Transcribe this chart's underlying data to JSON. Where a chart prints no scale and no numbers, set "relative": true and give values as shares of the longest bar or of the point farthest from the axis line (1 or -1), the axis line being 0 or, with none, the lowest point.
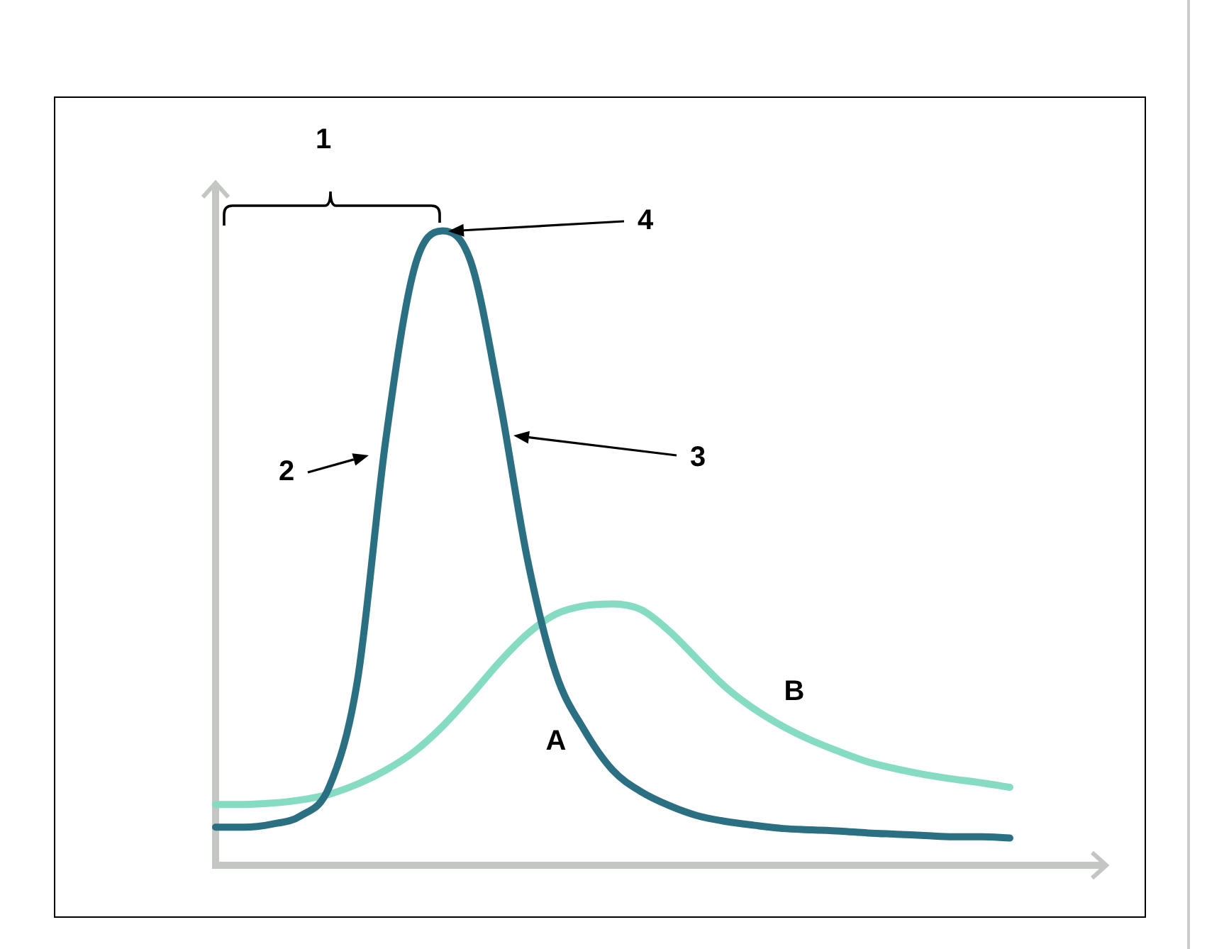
{
  "chart_data": {
    "type": "line",
    "relative": true,
    "marker": "none",
    "categories": [
      null,
      null,
      null,
      null,
      null,
      null,
      null,
      null,
      null,
      null,
      null,
      null,
      null,
      null,
      null,
      null,
      null,
      null,
      null,
      null,
      null,
      null,
      null,
      null,
      null,
      null,
      null,
      null,
      null
    ],
    "series": [
      {
        "name": "A",
        "color": "#2b6f83",
        "values": [
          0.06,
          0.06,
          0.065,
          0.078,
          0.123,
          0.291,
          0.671,
          0.94,
          1,
          0.951,
          0.738,
          0.481,
          0.302,
          0.213,
          0.15,
          0.116,
          0.094,
          0.078,
          0.069,
          0.063,
          0.058,
          0.056,
          0.054,
          0.051,
          0.049,
          0.047,
          0.045,
          0.045,
          0.043
        ]
      },
      {
        "name": "B",
        "color": "#86dcc2",
        "values": [
          0.096,
          0.096,
          0.098,
          0.103,
          0.112,
          0.128,
          0.15,
          0.179,
          0.219,
          0.268,
          0.32,
          0.365,
          0.396,
          0.409,
          0.412,
          0.403,
          0.369,
          0.324,
          0.28,
          0.246,
          0.219,
          0.197,
          0.179,
          0.163,
          0.152,
          0.143,
          0.136,
          0.13,
          0.123
        ]
      }
    ],
    "annotations": [
      "1",
      "2",
      "3",
      "4"
    ]
  }
}
